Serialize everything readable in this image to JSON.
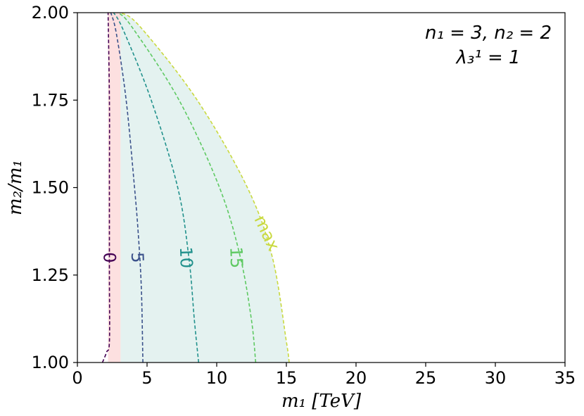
{
  "chart_data": {
    "type": "line",
    "xlabel": "m₁ [TeV]",
    "ylabel": "m₂/m₁",
    "xlim": [
      0,
      35
    ],
    "ylim": [
      1.0,
      2.0
    ],
    "xticks": [
      "0",
      "5",
      "10",
      "15",
      "20",
      "25",
      "30",
      "35"
    ],
    "yticks": [
      "1.00",
      "1.25",
      "1.50",
      "1.75",
      "2.00"
    ],
    "annotation": [
      "n₁ = 3, n₂ = 2",
      "λ₃¹ = 1"
    ],
    "shaded_regions": [
      {
        "color": "#fde0e0",
        "x_range": [
          2.2,
          3.1
        ],
        "y_range": [
          1.0,
          2.0
        ]
      },
      {
        "color": "#e4f2f0",
        "bounded_by": "max"
      }
    ],
    "series": [
      {
        "name": "0",
        "color": "#440154",
        "x": [
          1.8,
          2.1,
          2.3,
          2.3,
          2.3,
          2.3,
          2.2
        ],
        "y": [
          1.0,
          1.03,
          1.06,
          1.25,
          1.5,
          1.75,
          2.0
        ]
      },
      {
        "name": "5",
        "color": "#3b528b",
        "x": [
          4.7,
          4.6,
          4.4,
          4.1,
          3.5,
          2.8,
          2.4
        ],
        "y": [
          1.0,
          1.2,
          1.35,
          1.5,
          1.75,
          1.94,
          2.0
        ]
      },
      {
        "name": "10",
        "color": "#21918c",
        "x": [
          8.7,
          8.4,
          8.0,
          7.2,
          5.3,
          3.3,
          2.6
        ],
        "y": [
          1.0,
          1.12,
          1.3,
          1.5,
          1.75,
          1.95,
          2.0
        ]
      },
      {
        "name": "15",
        "color": "#5ec962",
        "x": [
          12.8,
          12.5,
          11.7,
          10.2,
          7.3,
          3.9,
          2.9
        ],
        "y": [
          1.0,
          1.12,
          1.3,
          1.5,
          1.75,
          1.96,
          2.0
        ]
      },
      {
        "name": "max",
        "color": "#c9d93f",
        "x": [
          15.2,
          15.0,
          14.0,
          12.2,
          8.6,
          4.5,
          3.1
        ],
        "y": [
          1.0,
          1.06,
          1.3,
          1.5,
          1.75,
          1.96,
          2.0
        ]
      }
    ],
    "contour_labels": [
      {
        "text": "0",
        "x": 2.3,
        "y": 1.3,
        "color": "#440154"
      },
      {
        "text": "5",
        "x": 4.3,
        "y": 1.3,
        "color": "#3b528b"
      },
      {
        "text": "10",
        "x": 7.8,
        "y": 1.3,
        "color": "#21918c"
      },
      {
        "text": "15",
        "x": 11.4,
        "y": 1.3,
        "color": "#5ec962"
      },
      {
        "text": "max",
        "x": 13.6,
        "y": 1.37,
        "color": "#c9d93f"
      }
    ]
  }
}
